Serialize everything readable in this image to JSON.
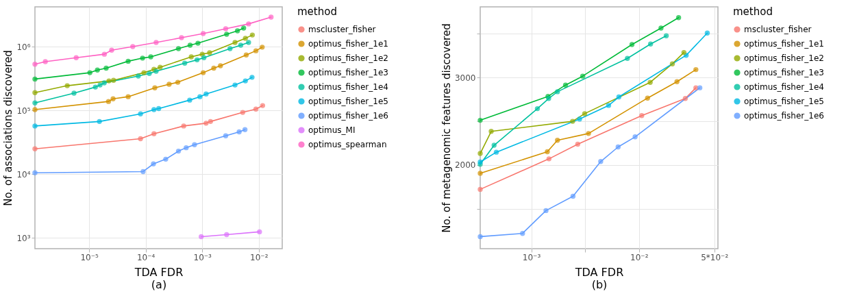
{
  "chart_data": [
    {
      "type": "line",
      "xlabel": "TDA FDR",
      "ylabel": "No. of associations discovered",
      "legend_title": "method",
      "annotations": [
        "(a)"
      ],
      "log": "xy",
      "grid": true,
      "legend": "right",
      "marker": "circle",
      "xlim": [
        1.1e-06,
        0.026
      ],
      "ylim": [
        680,
        4200000
      ],
      "xticks": [
        {
          "value": 1e-05,
          "label": "10⁻⁵"
        },
        {
          "value": 0.0001,
          "label": "10⁻⁴"
        },
        {
          "value": 0.001,
          "label": "10⁻³"
        },
        {
          "value": 0.01,
          "label": "10⁻²"
        }
      ],
      "yticks": [
        {
          "value": 1000,
          "label": "10³"
        },
        {
          "value": 10000,
          "label": "10⁴"
        },
        {
          "value": 100000,
          "label": "10⁵"
        },
        {
          "value": 1000000,
          "label": "10⁶"
        }
      ],
      "series": [
        {
          "name": "mscluster_fisher",
          "color": "#f8766d",
          "x": [
            1.1e-06,
            8.1e-05,
            0.00014,
            0.00047,
            0.00117,
            0.0014,
            0.0052,
            0.0089,
            0.0117
          ],
          "values": [
            25000,
            36000,
            43000,
            57000,
            63000,
            67000,
            93000,
            105000,
            119000
          ]
        },
        {
          "name": "optimus_fisher_1e1",
          "color": "#d39200",
          "x": [
            1.1e-06,
            2.2e-05,
            2.65e-05,
            4.9e-05,
            0.000145,
            0.00026,
            0.00037,
            0.00104,
            0.0016,
            0.0021,
            0.006,
            0.0089,
            0.0115
          ],
          "values": [
            103000,
            138000,
            152000,
            164000,
            226000,
            257000,
            276000,
            390000,
            460000,
            500000,
            740000,
            860000,
            980000
          ]
        },
        {
          "name": "optimus_fisher_1e2",
          "color": "#93aa00",
          "x": [
            1.1e-06,
            4.1e-06,
            2.24e-05,
            2.7e-05,
            9.3e-05,
            0.00014,
            0.00018,
            0.00064,
            0.001,
            0.00135,
            0.0038,
            0.0058,
            0.0077
          ],
          "values": [
            190000,
            244000,
            290000,
            296000,
            390000,
            440000,
            475000,
            690000,
            760000,
            800000,
            1160000,
            1350000,
            1520000
          ]
        },
        {
          "name": "optimus_fisher_1e3",
          "color": "#00ba38",
          "x": [
            1.1e-06,
            1.03e-05,
            1.4e-05,
            2e-05,
            4.9e-05,
            8.8e-05,
            0.000123,
            0.00038,
            0.00061,
            0.00084,
            0.0027,
            0.0042,
            0.0054
          ],
          "values": [
            310000,
            390000,
            430000,
            460000,
            590000,
            660000,
            690000,
            930000,
            1050000,
            1130000,
            1560000,
            1770000,
            1950000
          ]
        },
        {
          "name": "optimus_fisher_1e4",
          "color": "#00c19f",
          "x": [
            1.1e-06,
            5.4e-06,
            1.29e-05,
            1.56e-05,
            1.85e-05,
            7.4e-05,
            0.000116,
            0.000153,
            0.00049,
            0.00081,
            0.00107,
            0.0031,
            0.0048,
            0.0066
          ],
          "values": [
            131000,
            186000,
            232000,
            250000,
            270000,
            345000,
            380000,
            410000,
            550000,
            620000,
            670000,
            930000,
            1050000,
            1160000
          ]
        },
        {
          "name": "optimus_fisher_1e5",
          "color": "#00b9e3",
          "x": [
            1.1e-06,
            1.52e-05,
            8.1e-05,
            0.00014,
            0.00017,
            0.0006,
            0.00091,
            0.00117,
            0.0038,
            0.0058,
            0.0076
          ],
          "values": [
            57000,
            67000,
            88000,
            103000,
            107000,
            145000,
            164000,
            181000,
            250000,
            290000,
            330000
          ]
        },
        {
          "name": "optimus_fisher_1e6",
          "color": "#619cff",
          "x": [
            1.1e-06,
            9e-05,
            0.000137,
            0.000226,
            0.00038,
            0.00052,
            0.00073,
            0.0026,
            0.0045,
            0.0057
          ],
          "values": [
            10500,
            11000,
            14500,
            17200,
            23000,
            26000,
            29000,
            40000,
            46000,
            50000
          ]
        },
        {
          "name": "optimus_MI",
          "color": "#db72fb",
          "x": [
            0.00096,
            0.0027,
            0.0103
          ],
          "values": [
            1050,
            1130,
            1250
          ]
        },
        {
          "name": "optimus_spearman",
          "color": "#ff61c3",
          "x": [
            1.1e-06,
            1.68e-06,
            5.9e-06,
            1.86e-05,
            2.5e-05,
            5.9e-05,
            0.000153,
            0.00043,
            0.00104,
            0.0026,
            0.0066,
            0.0165
          ],
          "values": [
            530000,
            580000,
            670000,
            760000,
            880000,
            1000000,
            1160000,
            1380000,
            1600000,
            1900000,
            2270000,
            2900000
          ]
        }
      ]
    },
    {
      "type": "line",
      "xlabel": "TDA FDR",
      "ylabel": "No. of metagenomic features discovered",
      "legend_title": "method",
      "annotations": [
        "(b)"
      ],
      "log": "x",
      "grid": true,
      "legend": "right",
      "marker": "circle",
      "xlim": [
        0.000336,
        0.054
      ],
      "ylim": [
        1042,
        3809
      ],
      "xticks": [
        {
          "value": 0.001,
          "label": "10⁻³"
        },
        {
          "value": 0.00316,
          "label": null
        },
        {
          "value": 0.01,
          "label": "10⁻²"
        },
        {
          "value": 0.05,
          "label": "5*10⁻²"
        }
      ],
      "yticks": [
        {
          "value": 1500,
          "label": null
        },
        2000,
        {
          "value": 2500,
          "label": null
        },
        3000,
        {
          "value": 3500,
          "label": null
        }
      ],
      "series": [
        {
          "name": "mscluster_fisher",
          "color": "#f8766d",
          "x": [
            0.000336,
            0.00146,
            0.0027,
            0.0106,
            0.0269,
            0.0337
          ],
          "values": [
            1721,
            2070,
            2237,
            2564,
            2760,
            2883
          ]
        },
        {
          "name": "optimus_fisher_1e1",
          "color": "#d39200",
          "x": [
            0.000336,
            0.00141,
            0.00175,
            0.0034,
            0.012,
            0.0225,
            0.0337
          ],
          "values": [
            1904,
            2151,
            2282,
            2360,
            2765,
            2953,
            3091
          ]
        },
        {
          "name": "optimus_fisher_1e2",
          "color": "#93aa00",
          "x": [
            0.000336,
            0.000425,
            0.00242,
            0.00313,
            0.0127,
            0.0204,
            0.0261
          ],
          "values": [
            2131,
            2384,
            2499,
            2587,
            2945,
            3157,
            3287
          ]
        },
        {
          "name": "optimus_fisher_1e3",
          "color": "#00ba38",
          "x": [
            0.000336,
            0.00143,
            0.00208,
            0.003,
            0.0086,
            0.016,
            0.0233
          ],
          "values": [
            2511,
            2785,
            2914,
            3016,
            3378,
            3566,
            3686
          ]
        },
        {
          "name": "optimus_fisher_1e4",
          "color": "#00c19f",
          "x": [
            0.000336,
            0.000452,
            0.00114,
            0.00145,
            0.00175,
            0.0078,
            0.0128,
            0.0179
          ],
          "values": [
            2008,
            2225,
            2644,
            2760,
            2838,
            3219,
            3384,
            3478
          ]
        },
        {
          "name": "optimus_fisher_1e5",
          "color": "#00b9e3",
          "x": [
            0.000336,
            0.000474,
            0.00281,
            0.00522,
            0.0065,
            0.0274,
            0.043
          ],
          "values": [
            2034,
            2146,
            2525,
            2681,
            2778,
            3255,
            3509
          ]
        },
        {
          "name": "optimus_fisher_1e6",
          "color": "#619cff",
          "x": [
            0.000336,
            0.00083,
            0.00137,
            0.00244,
            0.00441,
            0.0064,
            0.0092,
            0.0367
          ],
          "values": [
            1180,
            1217,
            1478,
            1642,
            2039,
            2206,
            2321,
            2883
          ]
        }
      ]
    }
  ]
}
